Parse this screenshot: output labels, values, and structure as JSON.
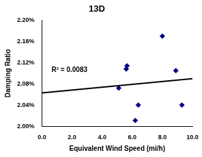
{
  "chart_data": {
    "type": "scatter",
    "title": "13D",
    "x_label": "Equivalent Wind Speed (mi/h)",
    "y_label": "Damping Ratio",
    "x": [
      5.1,
      5.6,
      5.65,
      6.2,
      6.4,
      8.0,
      8.9,
      9.3
    ],
    "values": [
      2.072,
      2.108,
      2.114,
      2.011,
      2.04,
      2.17,
      2.105,
      2.04
    ],
    "color": "#000080",
    "marker": "diamond",
    "trendline": {
      "x": [
        0,
        10
      ],
      "values": [
        2.063,
        2.09
      ],
      "color": "#000000"
    },
    "annotation": "R² = 0.0083",
    "xlim": [
      0,
      10
    ],
    "xticks": [
      {
        "value": 0,
        "label": "0.0"
      },
      {
        "value": 2,
        "label": "2.0"
      },
      {
        "value": 4,
        "label": "4.0"
      },
      {
        "value": 6,
        "label": "6.0"
      },
      {
        "value": 8,
        "label": "8.0"
      },
      {
        "value": 10,
        "label": "10.0"
      }
    ],
    "ylim": [
      2.0,
      2.2
    ],
    "yticks": [
      {
        "value": 2.0,
        "label": "2.00%"
      },
      {
        "value": 2.04,
        "label": "2.04%"
      },
      {
        "value": 2.08,
        "label": "2.08%"
      },
      {
        "value": 2.12,
        "label": "2.12%"
      },
      {
        "value": 2.16,
        "label": "2.16%"
      },
      {
        "value": 2.2,
        "label": "2.20%"
      }
    ],
    "grid": false
  }
}
